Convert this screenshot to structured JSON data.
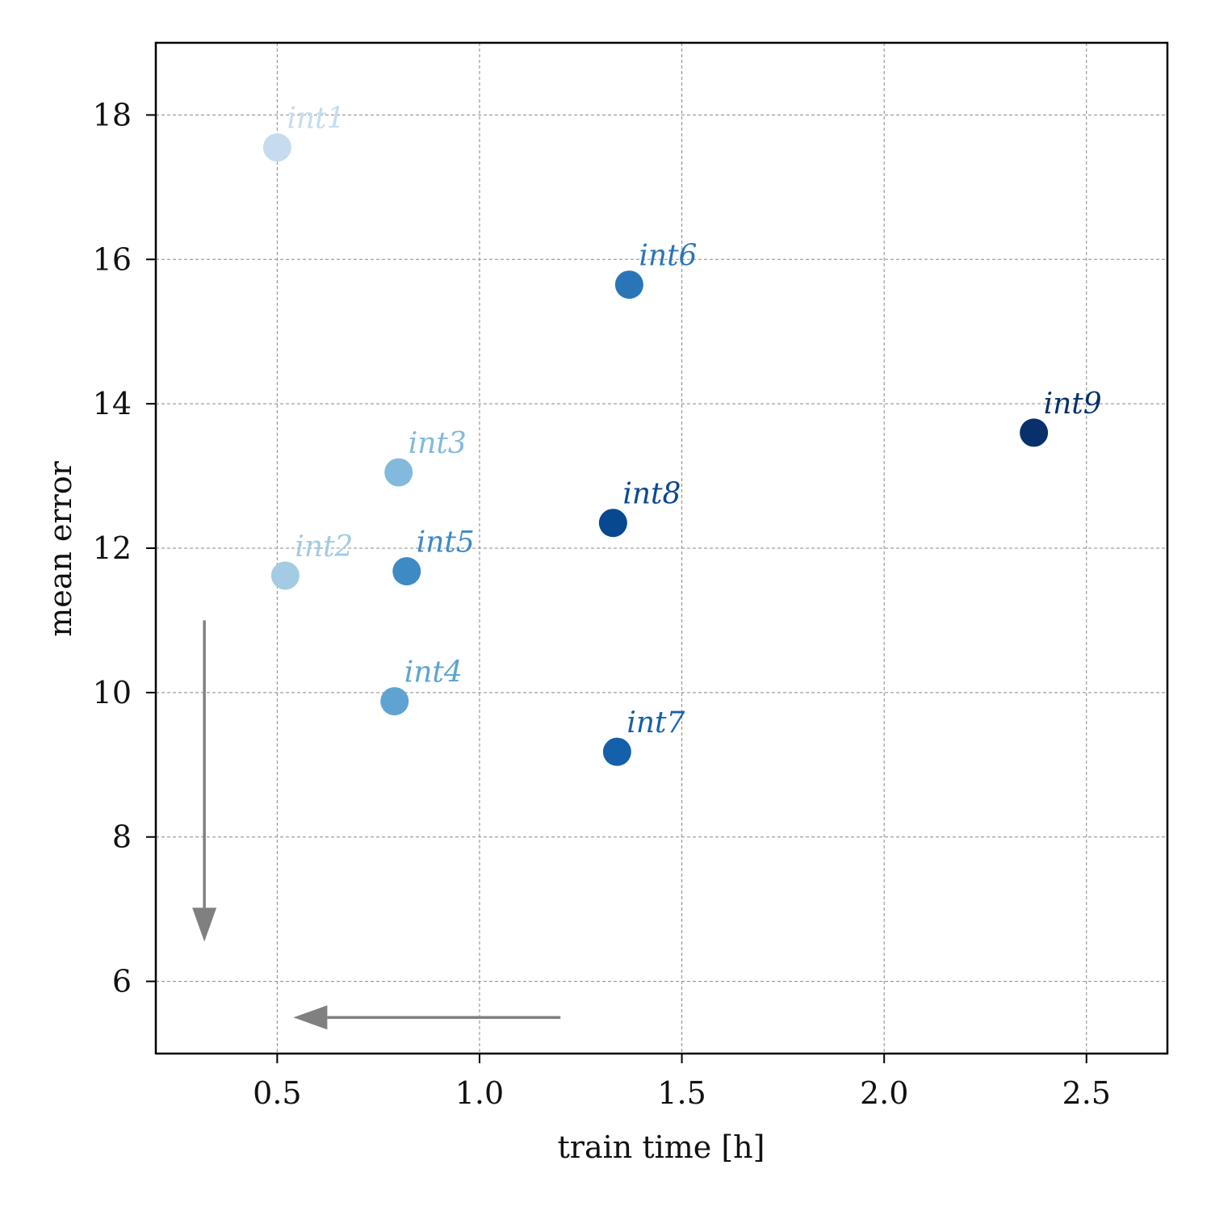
{
  "chart_data": {
    "type": "scatter",
    "title": "",
    "xlabel": "train time [h]",
    "ylabel": "mean error",
    "xlim": [
      0.2,
      2.7
    ],
    "ylim": [
      5.0,
      19.0
    ],
    "xticks": [
      0.5,
      1.0,
      1.5,
      2.0,
      2.5
    ],
    "xtick_labels": [
      "0.5",
      "1.0",
      "1.5",
      "2.0",
      "2.5"
    ],
    "yticks": [
      6,
      8,
      10,
      12,
      14,
      16,
      18
    ],
    "ytick_labels": [
      "6",
      "8",
      "10",
      "12",
      "14",
      "16",
      "18"
    ],
    "grid": true,
    "points": [
      {
        "label": "int1",
        "x": 0.5,
        "y": 17.55,
        "color": "#c6dbef"
      },
      {
        "label": "int2",
        "x": 0.52,
        "y": 11.62,
        "color": "#a3cbe3"
      },
      {
        "label": "int3",
        "x": 0.8,
        "y": 13.05,
        "color": "#82b9dc"
      },
      {
        "label": "int4",
        "x": 0.79,
        "y": 9.88,
        "color": "#5ea3d1"
      },
      {
        "label": "int5",
        "x": 0.82,
        "y": 11.68,
        "color": "#3e8ac5"
      },
      {
        "label": "int6",
        "x": 1.37,
        "y": 15.65,
        "color": "#2a75b8"
      },
      {
        "label": "int7",
        "x": 1.34,
        "y": 9.18,
        "color": "#1560aa"
      },
      {
        "label": "int8",
        "x": 1.33,
        "y": 12.35,
        "color": "#084891"
      },
      {
        "label": "int9",
        "x": 2.37,
        "y": 13.6,
        "color": "#08306b"
      }
    ],
    "arrows": [
      {
        "direction": "down",
        "from": [
          0.32,
          11.0
        ],
        "to": [
          0.32,
          6.55
        ],
        "color": "#808080"
      },
      {
        "direction": "left",
        "from": [
          1.2,
          5.5
        ],
        "to": [
          0.54,
          5.5
        ],
        "color": "#808080"
      }
    ]
  }
}
